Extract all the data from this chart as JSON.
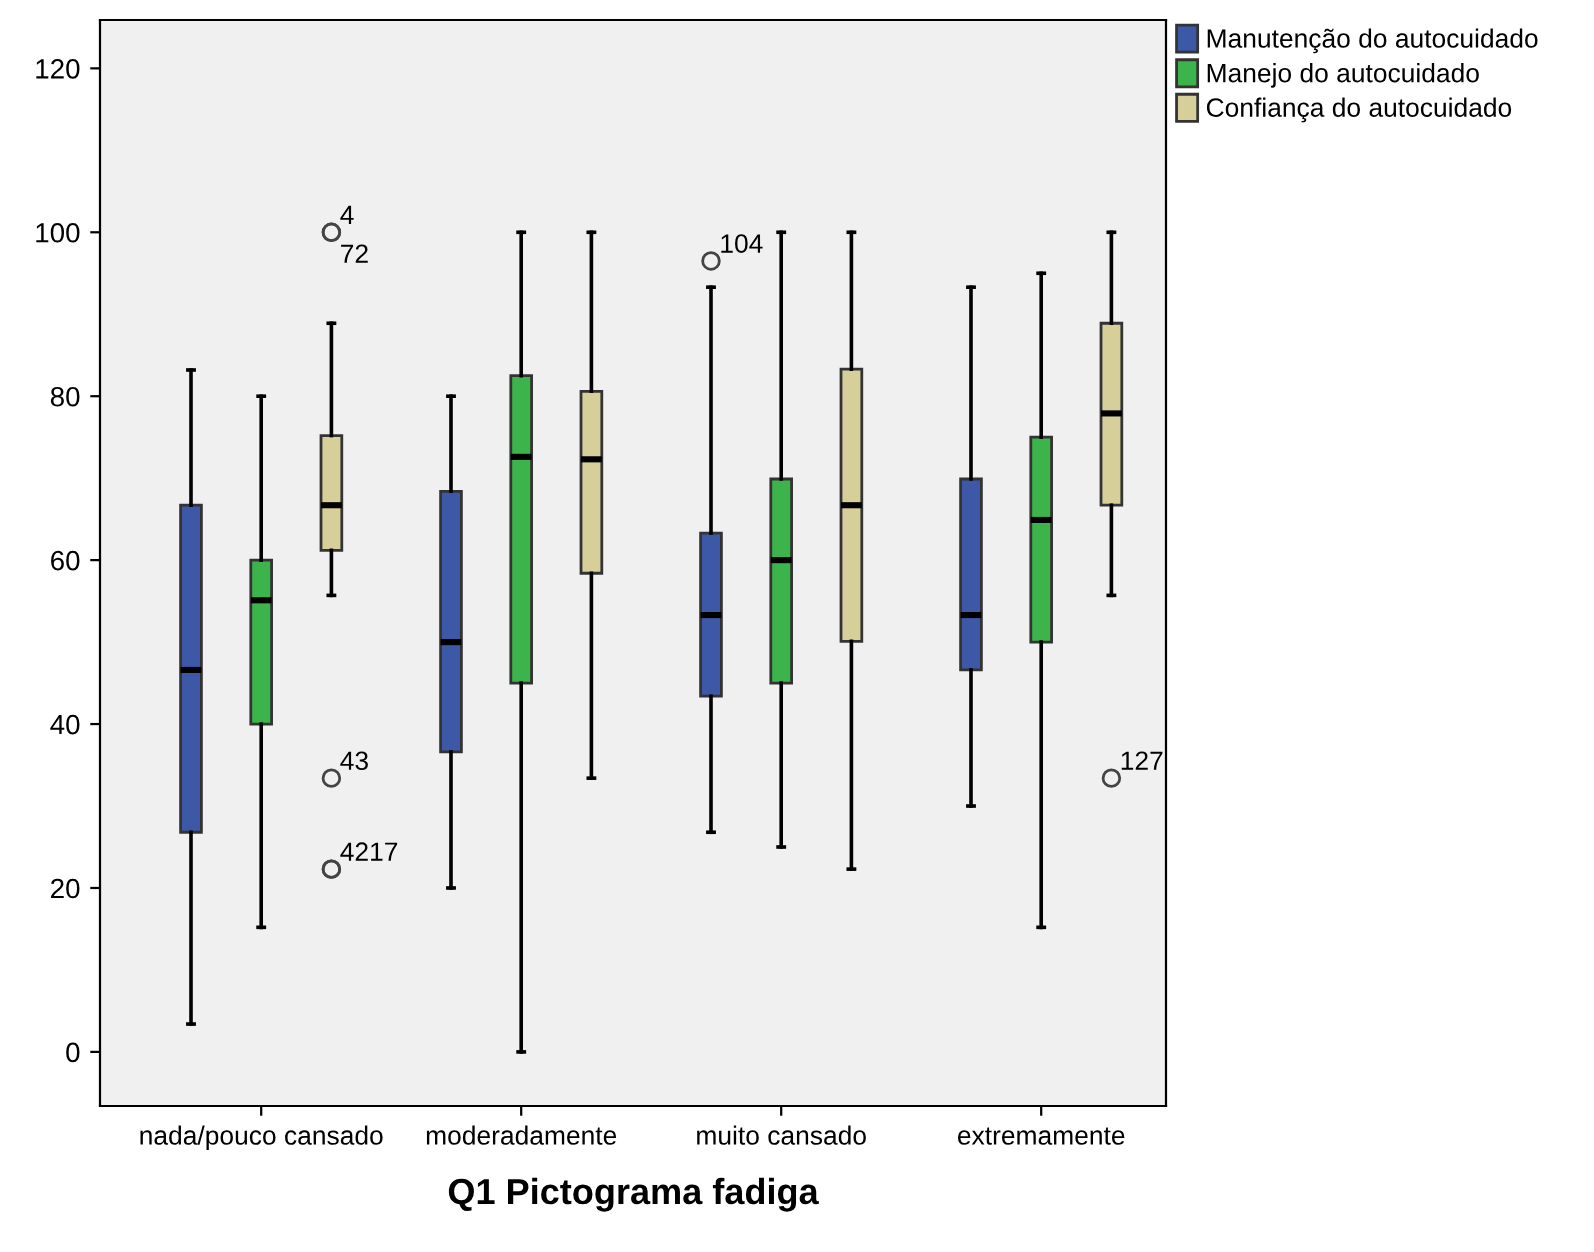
{
  "chart_data": {
    "type": "box",
    "xlabel": "Q1 Pictograma fadiga",
    "categories": [
      "nada/pouco cansado",
      "moderadamente",
      "muito cansado",
      "extremamente"
    ],
    "ylim": [
      -6.6,
      125.9
    ],
    "yticks": [
      0,
      20,
      40,
      60,
      80,
      100,
      120
    ],
    "grid": false,
    "legend": "top right",
    "series": [
      {
        "name": "Manutenção do autocuidado",
        "color": "#3e58a8",
        "boxes": [
          {
            "low": 3.4,
            "q1": 26.8,
            "median": 46.6,
            "q3": 66.7,
            "high": 83.2
          },
          {
            "low": 20,
            "q1": 36.6,
            "median": 50,
            "q3": 68.4,
            "high": 80
          },
          {
            "low": 26.8,
            "q1": 43.4,
            "median": 53.3,
            "q3": 63.3,
            "high": 93.3,
            "outliers": [
              96.5
            ]
          },
          {
            "low": 30,
            "q1": 46.6,
            "median": 53.3,
            "q3": 69.9,
            "high": 93.3
          }
        ]
      },
      {
        "name": "Manejo do autocuidado",
        "color": "#3cb44b",
        "boxes": [
          {
            "low": 15.2,
            "q1": 40,
            "median": 55.1,
            "q3": 60,
            "high": 80
          },
          {
            "low": 0,
            "q1": 45,
            "median": 72.6,
            "q3": 82.5,
            "high": 100
          },
          {
            "low": 25,
            "q1": 45,
            "median": 60,
            "q3": 69.9,
            "high": 100
          },
          {
            "low": 15.2,
            "q1": 50,
            "median": 64.9,
            "q3": 75,
            "high": 95
          }
        ]
      },
      {
        "name": "Confiança do autocuidado",
        "color": "#d6cf9a",
        "boxes": [
          {
            "low": 55.7,
            "q1": 61.2,
            "median": 66.7,
            "q3": 75.2,
            "high": 88.9,
            "outliers": [
              100,
              100,
              33.4,
              22.3,
              22.3
            ]
          },
          {
            "low": 33.4,
            "q1": 58.4,
            "median": 72.3,
            "q3": 80.6,
            "high": 100
          },
          {
            "low": 22.3,
            "q1": 50.1,
            "median": 66.7,
            "q3": 83.3,
            "high": 100
          },
          {
            "low": 55.7,
            "q1": 66.7,
            "median": 77.9,
            "q3": 88.9,
            "high": 100,
            "outliers": [
              33.4
            ]
          }
        ]
      }
    ],
    "annotations": [
      "4",
      "72",
      "43",
      "4217",
      "104",
      "127"
    ]
  }
}
